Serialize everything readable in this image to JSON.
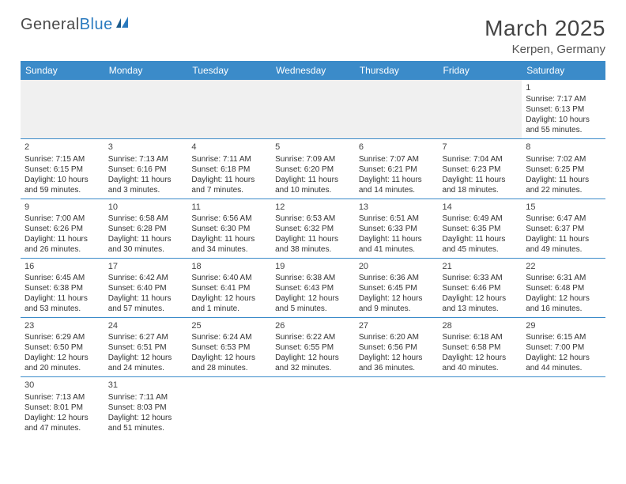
{
  "logo": {
    "text1": "General",
    "text2": "Blue"
  },
  "title": "March 2025",
  "location": "Kerpen, Germany",
  "day_headers": [
    "Sunday",
    "Monday",
    "Tuesday",
    "Wednesday",
    "Thursday",
    "Friday",
    "Saturday"
  ],
  "colors": {
    "header_bg": "#3b8bc9",
    "header_text": "#ffffff",
    "cell_border": "#3b8bc9",
    "empty_bg": "#f0f0f0",
    "text": "#333333",
    "title_color": "#444444"
  },
  "weeks": [
    [
      null,
      null,
      null,
      null,
      null,
      null,
      {
        "n": "1",
        "sr": "7:17 AM",
        "ss": "6:13 PM",
        "dl1": "10 hours",
        "dl2": "and 55 minutes."
      }
    ],
    [
      {
        "n": "2",
        "sr": "7:15 AM",
        "ss": "6:15 PM",
        "dl1": "10 hours",
        "dl2": "and 59 minutes."
      },
      {
        "n": "3",
        "sr": "7:13 AM",
        "ss": "6:16 PM",
        "dl1": "11 hours",
        "dl2": "and 3 minutes."
      },
      {
        "n": "4",
        "sr": "7:11 AM",
        "ss": "6:18 PM",
        "dl1": "11 hours",
        "dl2": "and 7 minutes."
      },
      {
        "n": "5",
        "sr": "7:09 AM",
        "ss": "6:20 PM",
        "dl1": "11 hours",
        "dl2": "and 10 minutes."
      },
      {
        "n": "6",
        "sr": "7:07 AM",
        "ss": "6:21 PM",
        "dl1": "11 hours",
        "dl2": "and 14 minutes."
      },
      {
        "n": "7",
        "sr": "7:04 AM",
        "ss": "6:23 PM",
        "dl1": "11 hours",
        "dl2": "and 18 minutes."
      },
      {
        "n": "8",
        "sr": "7:02 AM",
        "ss": "6:25 PM",
        "dl1": "11 hours",
        "dl2": "and 22 minutes."
      }
    ],
    [
      {
        "n": "9",
        "sr": "7:00 AM",
        "ss": "6:26 PM",
        "dl1": "11 hours",
        "dl2": "and 26 minutes."
      },
      {
        "n": "10",
        "sr": "6:58 AM",
        "ss": "6:28 PM",
        "dl1": "11 hours",
        "dl2": "and 30 minutes."
      },
      {
        "n": "11",
        "sr": "6:56 AM",
        "ss": "6:30 PM",
        "dl1": "11 hours",
        "dl2": "and 34 minutes."
      },
      {
        "n": "12",
        "sr": "6:53 AM",
        "ss": "6:32 PM",
        "dl1": "11 hours",
        "dl2": "and 38 minutes."
      },
      {
        "n": "13",
        "sr": "6:51 AM",
        "ss": "6:33 PM",
        "dl1": "11 hours",
        "dl2": "and 41 minutes."
      },
      {
        "n": "14",
        "sr": "6:49 AM",
        "ss": "6:35 PM",
        "dl1": "11 hours",
        "dl2": "and 45 minutes."
      },
      {
        "n": "15",
        "sr": "6:47 AM",
        "ss": "6:37 PM",
        "dl1": "11 hours",
        "dl2": "and 49 minutes."
      }
    ],
    [
      {
        "n": "16",
        "sr": "6:45 AM",
        "ss": "6:38 PM",
        "dl1": "11 hours",
        "dl2": "and 53 minutes."
      },
      {
        "n": "17",
        "sr": "6:42 AM",
        "ss": "6:40 PM",
        "dl1": "11 hours",
        "dl2": "and 57 minutes."
      },
      {
        "n": "18",
        "sr": "6:40 AM",
        "ss": "6:41 PM",
        "dl1": "12 hours",
        "dl2": "and 1 minute."
      },
      {
        "n": "19",
        "sr": "6:38 AM",
        "ss": "6:43 PM",
        "dl1": "12 hours",
        "dl2": "and 5 minutes."
      },
      {
        "n": "20",
        "sr": "6:36 AM",
        "ss": "6:45 PM",
        "dl1": "12 hours",
        "dl2": "and 9 minutes."
      },
      {
        "n": "21",
        "sr": "6:33 AM",
        "ss": "6:46 PM",
        "dl1": "12 hours",
        "dl2": "and 13 minutes."
      },
      {
        "n": "22",
        "sr": "6:31 AM",
        "ss": "6:48 PM",
        "dl1": "12 hours",
        "dl2": "and 16 minutes."
      }
    ],
    [
      {
        "n": "23",
        "sr": "6:29 AM",
        "ss": "6:50 PM",
        "dl1": "12 hours",
        "dl2": "and 20 minutes."
      },
      {
        "n": "24",
        "sr": "6:27 AM",
        "ss": "6:51 PM",
        "dl1": "12 hours",
        "dl2": "and 24 minutes."
      },
      {
        "n": "25",
        "sr": "6:24 AM",
        "ss": "6:53 PM",
        "dl1": "12 hours",
        "dl2": "and 28 minutes."
      },
      {
        "n": "26",
        "sr": "6:22 AM",
        "ss": "6:55 PM",
        "dl1": "12 hours",
        "dl2": "and 32 minutes."
      },
      {
        "n": "27",
        "sr": "6:20 AM",
        "ss": "6:56 PM",
        "dl1": "12 hours",
        "dl2": "and 36 minutes."
      },
      {
        "n": "28",
        "sr": "6:18 AM",
        "ss": "6:58 PM",
        "dl1": "12 hours",
        "dl2": "and 40 minutes."
      },
      {
        "n": "29",
        "sr": "6:15 AM",
        "ss": "7:00 PM",
        "dl1": "12 hours",
        "dl2": "and 44 minutes."
      }
    ],
    [
      {
        "n": "30",
        "sr": "7:13 AM",
        "ss": "8:01 PM",
        "dl1": "12 hours",
        "dl2": "and 47 minutes."
      },
      {
        "n": "31",
        "sr": "7:11 AM",
        "ss": "8:03 PM",
        "dl1": "12 hours",
        "dl2": "and 51 minutes."
      },
      null,
      null,
      null,
      null,
      null
    ]
  ]
}
